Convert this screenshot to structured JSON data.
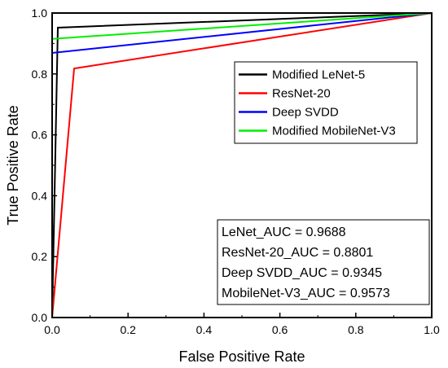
{
  "chart_data": {
    "type": "line",
    "title": "",
    "xlabel": "False Positive Rate",
    "ylabel": "True Positive Rate",
    "xlim": [
      0.0,
      1.0
    ],
    "ylim": [
      0.0,
      1.0
    ],
    "xticks": [
      "0.0",
      "0.2",
      "0.4",
      "0.6",
      "0.8",
      "1.0"
    ],
    "yticks": [
      "0.0",
      "0.2",
      "0.4",
      "0.6",
      "0.8",
      "1.0"
    ],
    "grid": false,
    "legend_position": "upper-right",
    "series": [
      {
        "name": "Modified LeNet-5",
        "color": "#000000",
        "x": [
          0.0,
          0.015,
          1.0
        ],
        "y": [
          0.0,
          0.952,
          1.0
        ]
      },
      {
        "name": "ResNet-20",
        "color": "#ff0000",
        "x": [
          0.0,
          0.058,
          1.0
        ],
        "y": [
          0.0,
          0.818,
          1.0
        ]
      },
      {
        "name": "Deep SVDD",
        "color": "#0000ff",
        "x": [
          0.0,
          0.0,
          1.0
        ],
        "y": [
          0.0,
          0.869,
          1.0
        ]
      },
      {
        "name": "Modified MobileNet-V3",
        "color": "#00ee00",
        "x": [
          0.0,
          0.0,
          1.0
        ],
        "y": [
          0.0,
          0.915,
          1.0
        ]
      }
    ],
    "annotations": [
      "LeNet_AUC = 0.9688",
      "ResNet-20_AUC = 0.8801",
      "Deep SVDD_AUC = 0.9345",
      "MobileNet-V3_AUC = 0.9573"
    ]
  }
}
